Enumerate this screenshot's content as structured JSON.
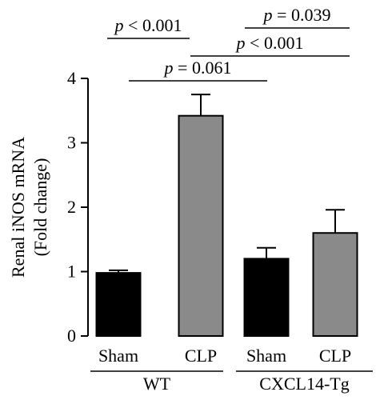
{
  "chart_data": {
    "type": "bar",
    "categories": [
      "Sham",
      "CLP",
      "Sham",
      "CLP"
    ],
    "groups": [
      {
        "label": "WT",
        "categories": [
          0,
          1
        ]
      },
      {
        "label": "CXCL14-Tg",
        "categories": [
          2,
          3
        ]
      }
    ],
    "values": [
      0.98,
      3.42,
      1.2,
      1.6
    ],
    "errors": [
      0.04,
      0.33,
      0.17,
      0.36
    ],
    "bar_colors": [
      "#000000",
      "#8a8a8a",
      "#000000",
      "#8a8a8a"
    ],
    "ylabel_line1": "Renal iNOS mRNA",
    "ylabel_line2": "(Fold change)",
    "ylim": [
      0,
      4
    ],
    "yticks": [
      0,
      1,
      2,
      3,
      4
    ],
    "comparisons": [
      {
        "from": 0,
        "to": 1,
        "label": "p < 0.001",
        "p_symbol": "p",
        "rest": " < 0.001"
      },
      {
        "from": 0,
        "to": 2,
        "label": "p = 0.061",
        "p_symbol": "p",
        "rest": " = 0.061"
      },
      {
        "from": 1,
        "to": 3,
        "label": "p < 0.001",
        "p_symbol": "p",
        "rest": " < 0.001"
      },
      {
        "from": 2,
        "to": 3,
        "label": "p = 0.039",
        "p_symbol": "p",
        "rest": " = 0.039"
      }
    ]
  }
}
